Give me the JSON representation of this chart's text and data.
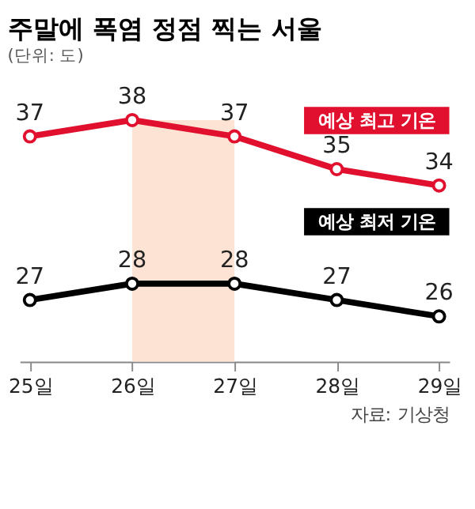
{
  "chart_data": {
    "type": "line",
    "title": "주말에 폭염 정점 찍는 서울",
    "subtitle": "(단위: 도)",
    "categories": [
      "25일",
      "26일",
      "27일",
      "28일",
      "29일"
    ],
    "series": [
      {
        "name": "예상 최고 기온",
        "color": "#e0102e",
        "values": [
          37,
          38,
          37,
          35,
          34
        ]
      },
      {
        "name": "예상 최저 기온",
        "color": "#000000",
        "values": [
          27,
          28,
          28,
          27,
          26
        ]
      }
    ],
    "bands": [
      {
        "axis": "x",
        "from": "26일",
        "to": "27일",
        "color": "#fde3d3"
      }
    ],
    "tick_labels": "x",
    "data_labels": true,
    "marker": "circle",
    "line_style": "solid",
    "grid": false,
    "annotations": [
      "자료: 기상청"
    ]
  }
}
